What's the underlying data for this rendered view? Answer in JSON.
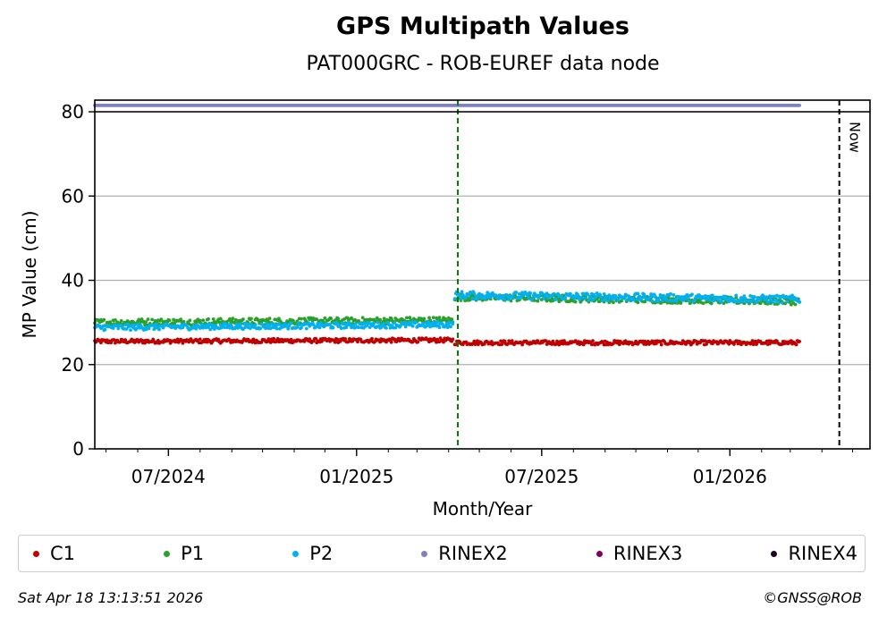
{
  "title": "GPS Multipath Values",
  "subtitle": "PAT000GRC - ROB-EUREF data node",
  "footer": {
    "timestamp": "Sat Apr 18 13:13:51 2026",
    "credit": "©GNSS@ROB"
  },
  "now_label": "Now",
  "legend": [
    {
      "name": "C1",
      "color": "#c00000"
    },
    {
      "name": "P1",
      "color": "#2ca02c"
    },
    {
      "name": "P2",
      "color": "#00b0f0"
    },
    {
      "name": "RINEX2",
      "color": "#8080c0"
    },
    {
      "name": "RINEX3",
      "color": "#800060"
    },
    {
      "name": "RINEX4",
      "color": "#200020"
    }
  ],
  "chart_data": {
    "type": "scatter",
    "title": "GPS Multipath Values",
    "subtitle": "PAT000GRC - ROB-EUREF data node",
    "xlabel": "Month/Year",
    "ylabel": "MP Value (cm)",
    "xlim": [
      "2024-04-20",
      "2026-05-18"
    ],
    "ylim": [
      0,
      80
    ],
    "yticks": [
      0,
      20,
      40,
      60,
      80
    ],
    "xticks": [
      {
        "date": "2024-07-01",
        "label": "07/2024"
      },
      {
        "date": "2025-01-01",
        "label": "01/2025"
      },
      {
        "date": "2025-07-01",
        "label": "07/2025"
      },
      {
        "date": "2026-01-01",
        "label": "01/2026"
      }
    ],
    "grid": "horizontal",
    "event_lines": [
      {
        "date": "2025-04-10",
        "color": "#007a00",
        "style": "dashed"
      },
      {
        "date": "2026-04-18",
        "color": "#000000",
        "style": "dashed",
        "label": "Now"
      }
    ],
    "series": [
      {
        "name": "C1",
        "color": "#c00000",
        "segments": [
          {
            "start": "2024-04-20",
            "end": "2025-04-05",
            "from": 25.5,
            "to": 25.8,
            "noise": 0.5
          },
          {
            "start": "2025-04-07",
            "end": "2026-03-10",
            "from": 25.2,
            "to": 25.2,
            "noise": 0.5
          }
        ]
      },
      {
        "name": "P1",
        "color": "#2ca02c",
        "segments": [
          {
            "start": "2024-04-20",
            "end": "2025-04-05",
            "from": 30.0,
            "to": 30.5,
            "noise": 0.8
          },
          {
            "start": "2025-04-07",
            "end": "2026-03-10",
            "from": 36.0,
            "to": 35.0,
            "noise": 0.8
          }
        ]
      },
      {
        "name": "P2",
        "color": "#00b0f0",
        "segments": [
          {
            "start": "2024-04-20",
            "end": "2025-04-05",
            "from": 28.8,
            "to": 29.5,
            "noise": 0.7
          },
          {
            "start": "2025-04-07",
            "end": "2026-03-10",
            "from": 36.5,
            "to": 35.5,
            "noise": 0.9
          }
        ]
      },
      {
        "name": "RINEX2",
        "color": "#8080c0",
        "segments": [
          {
            "start": "2024-04-20",
            "end": "2026-03-10",
            "from": 81.5,
            "to": 81.5,
            "noise": 0
          }
        ]
      }
    ]
  }
}
